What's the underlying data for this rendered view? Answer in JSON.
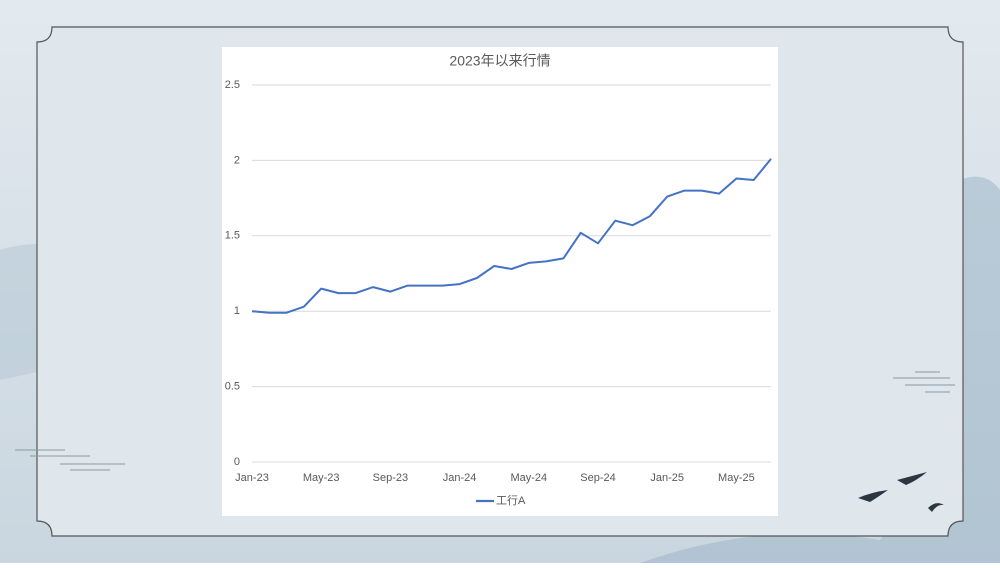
{
  "chart_data": {
    "type": "line",
    "title": "2023年以来行情",
    "categories": [
      "Jan-23",
      null,
      null,
      null,
      "May-23",
      null,
      null,
      null,
      "Sep-23",
      null,
      null,
      null,
      "Jan-24",
      null,
      null,
      null,
      "May-24",
      null,
      null,
      null,
      "Sep-24",
      null,
      null,
      null,
      "Jan-25",
      null,
      null,
      null,
      "May-25",
      null,
      null
    ],
    "series": [
      {
        "name": "工行A",
        "color": "#4472c4",
        "values": [
          1.0,
          0.99,
          0.99,
          1.03,
          1.15,
          1.12,
          1.12,
          1.16,
          1.13,
          1.17,
          1.17,
          1.17,
          1.18,
          1.22,
          1.3,
          1.28,
          1.32,
          1.33,
          1.35,
          1.52,
          1.45,
          1.6,
          1.57,
          1.63,
          1.76,
          1.8,
          1.8,
          1.78,
          1.88,
          1.87,
          2.01
        ]
      }
    ],
    "ylim": [
      0,
      2.5
    ],
    "yticks": [
      0,
      0.5,
      1,
      1.5,
      2,
      2.5
    ],
    "grid": true,
    "legend": "bottom"
  }
}
